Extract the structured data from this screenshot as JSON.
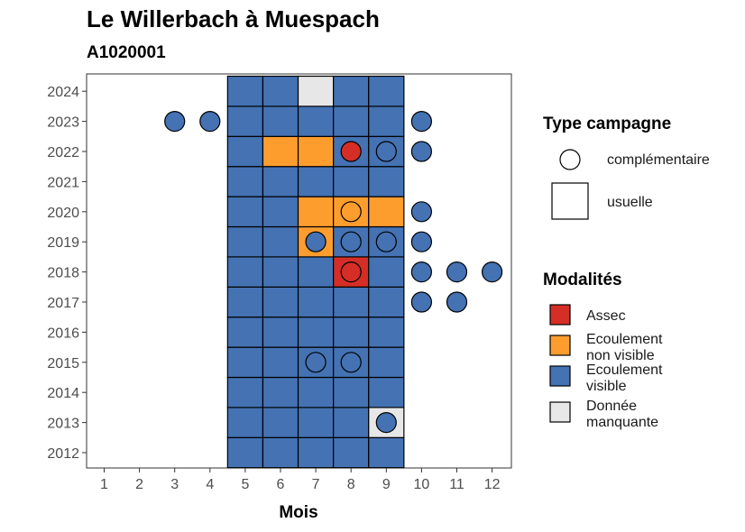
{
  "chart_data": {
    "type": "heatmap",
    "title": "Le Willerbach à Muespach",
    "subtitle": "A1020001",
    "xlabel": "Mois",
    "ylabel": "",
    "x_ticks": [
      1,
      2,
      3,
      4,
      5,
      6,
      7,
      8,
      9,
      10,
      11,
      12
    ],
    "y_ticks": [
      2012,
      2013,
      2014,
      2015,
      2016,
      2017,
      2018,
      2019,
      2020,
      2021,
      2022,
      2023,
      2024
    ],
    "colors": {
      "Assec": "#d52e26",
      "Ecoulement non visible": "#fd9d2e",
      "Ecoulement visible": "#4472b3",
      "Donnée manquante": "#e7e7e7"
    },
    "usuelle": [
      {
        "year": 2012,
        "cells": [
          "V",
          "V",
          "V",
          "V",
          "V"
        ]
      },
      {
        "year": 2013,
        "cells": [
          "V",
          "V",
          "V",
          "V",
          "M"
        ]
      },
      {
        "year": 2014,
        "cells": [
          "V",
          "V",
          "V",
          "V",
          "V"
        ]
      },
      {
        "year": 2015,
        "cells": [
          "V",
          "V",
          "V",
          "V",
          "V"
        ]
      },
      {
        "year": 2016,
        "cells": [
          "V",
          "V",
          "V",
          "V",
          "V"
        ]
      },
      {
        "year": 2017,
        "cells": [
          "V",
          "V",
          "V",
          "V",
          "V"
        ]
      },
      {
        "year": 2018,
        "cells": [
          "V",
          "V",
          "V",
          "A",
          "V"
        ]
      },
      {
        "year": 2019,
        "cells": [
          "V",
          "V",
          "N",
          "V",
          "V"
        ]
      },
      {
        "year": 2020,
        "cells": [
          "V",
          "V",
          "N",
          "N",
          "N"
        ]
      },
      {
        "year": 2021,
        "cells": [
          "V",
          "V",
          "V",
          "V",
          "V"
        ]
      },
      {
        "year": 2022,
        "cells": [
          "V",
          "N",
          "N",
          "V",
          "V"
        ]
      },
      {
        "year": 2023,
        "cells": [
          "V",
          "V",
          "V",
          "V",
          "V"
        ]
      },
      {
        "year": 2024,
        "cells": [
          "V",
          "V",
          "M",
          "V",
          "V"
        ]
      }
    ],
    "usuelle_months": [
      5,
      6,
      7,
      8,
      9
    ],
    "complementaire": [
      {
        "year": 2013,
        "month": 9,
        "modalite": "V"
      },
      {
        "year": 2015,
        "month": 7,
        "modalite": "V"
      },
      {
        "year": 2015,
        "month": 8,
        "modalite": "V"
      },
      {
        "year": 2017,
        "month": 10,
        "modalite": "V"
      },
      {
        "year": 2017,
        "month": 11,
        "modalite": "V"
      },
      {
        "year": 2018,
        "month": 8,
        "modalite": "A"
      },
      {
        "year": 2018,
        "month": 10,
        "modalite": "V"
      },
      {
        "year": 2018,
        "month": 11,
        "modalite": "V"
      },
      {
        "year": 2018,
        "month": 12,
        "modalite": "V"
      },
      {
        "year": 2019,
        "month": 7,
        "modalite": "V"
      },
      {
        "year": 2019,
        "month": 8,
        "modalite": "V"
      },
      {
        "year": 2019,
        "month": 9,
        "modalite": "V"
      },
      {
        "year": 2019,
        "month": 10,
        "modalite": "V"
      },
      {
        "year": 2020,
        "month": 8,
        "modalite": "N"
      },
      {
        "year": 2020,
        "month": 10,
        "modalite": "V"
      },
      {
        "year": 2022,
        "month": 8,
        "modalite": "A"
      },
      {
        "year": 2022,
        "month": 9,
        "modalite": "V"
      },
      {
        "year": 2022,
        "month": 10,
        "modalite": "V"
      },
      {
        "year": 2023,
        "month": 3,
        "modalite": "V"
      },
      {
        "year": 2023,
        "month": 4,
        "modalite": "V"
      },
      {
        "year": 2023,
        "month": 10,
        "modalite": "V"
      }
    ],
    "legend_type": {
      "title": "Type campagne",
      "items": [
        "complémentaire",
        "usuelle"
      ]
    },
    "legend_modalites": {
      "title": "Modalités",
      "items": [
        {
          "key": "A",
          "label_lines": [
            "Assec"
          ],
          "color": "#d52e26"
        },
        {
          "key": "N",
          "label_lines": [
            "Ecoulement",
            "non visible"
          ],
          "color": "#fd9d2e"
        },
        {
          "key": "V",
          "label_lines": [
            "Ecoulement",
            "visible"
          ],
          "color": "#4472b3"
        },
        {
          "key": "M",
          "label_lines": [
            "Donnée",
            "manquante"
          ],
          "color": "#e7e7e7"
        }
      ]
    },
    "legend_position": "right",
    "grid": false
  }
}
